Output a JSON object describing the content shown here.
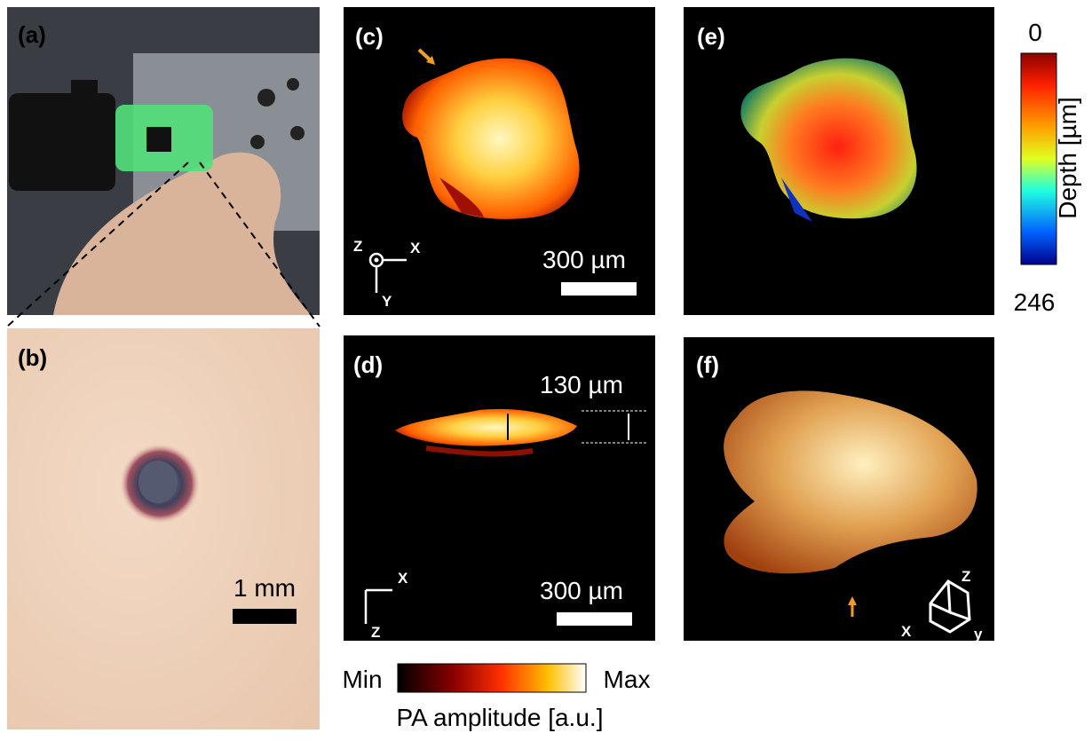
{
  "panels": [
    {
      "label": "(a)"
    },
    {
      "label": "(b)",
      "scale_bar": "1 mm"
    },
    {
      "label": "(c)",
      "scale_bar": "300 µm",
      "axes": [
        "Z",
        "X",
        "Y"
      ]
    },
    {
      "label": "(d)",
      "scale_bar": "300 µm",
      "thickness": "130 µm",
      "axes": [
        "X",
        "Z"
      ]
    },
    {
      "label": "(e)"
    },
    {
      "label": "(f)",
      "axes": [
        "Z",
        "X",
        "y"
      ]
    }
  ],
  "depth_colorbar": {
    "title": "Depth [µm]",
    "min_label": "0",
    "max_label": "246"
  },
  "amplitude_colorbar": {
    "title": "PA amplitude [a.u.]",
    "min_label": "Min",
    "max_label": "Max"
  }
}
